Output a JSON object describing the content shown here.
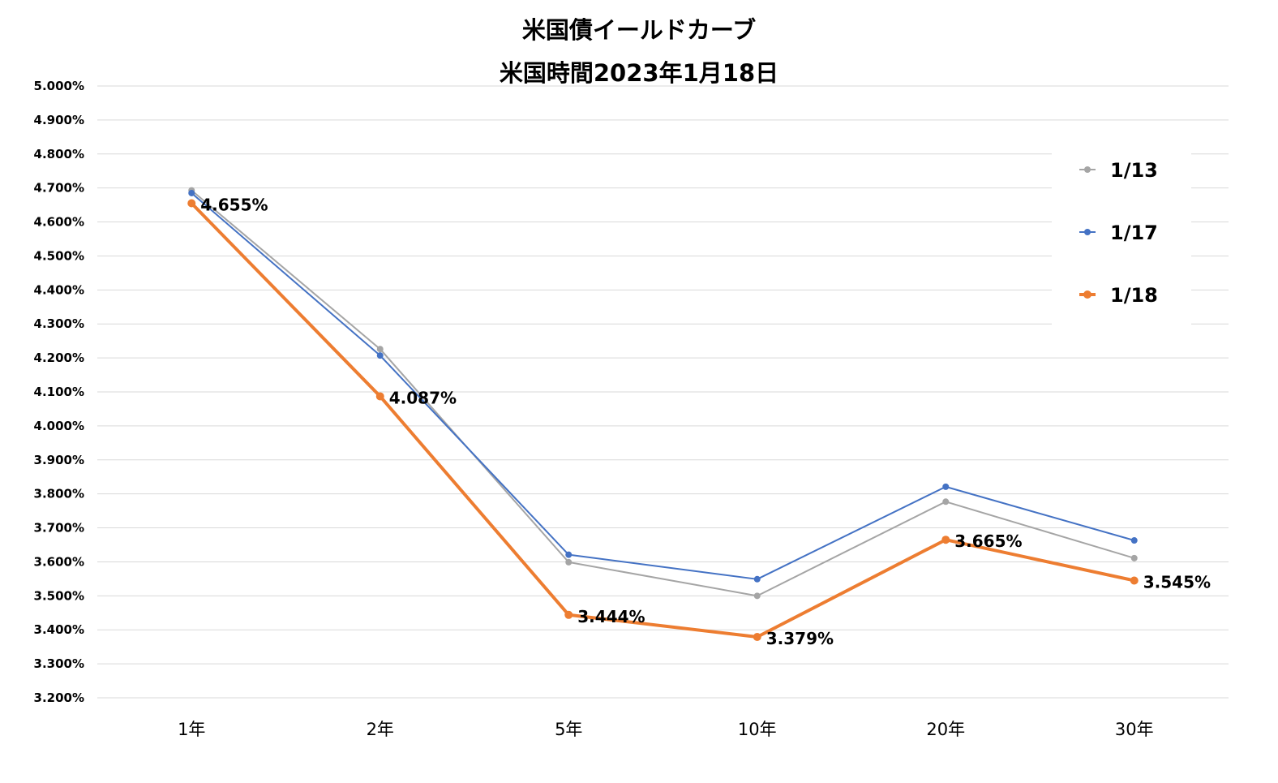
{
  "chart_data": {
    "type": "line",
    "title": "米国債イールドカーブ",
    "subtitle": "米国時間2023年1月18日",
    "categories": [
      "1年",
      "2年",
      "5年",
      "10年",
      "20年",
      "30年"
    ],
    "ylim": [
      3.2,
      5.0
    ],
    "ytick_step": 0.1,
    "ytick_format": "percent_3dp",
    "grid": true,
    "legend_placement": "top-right",
    "series": [
      {
        "name": "1/13",
        "color": "#A5A5A5",
        "values": [
          4.693,
          4.226,
          3.599,
          3.5,
          3.777,
          3.611
        ],
        "show_labels": false,
        "emphasis": false
      },
      {
        "name": "1/17",
        "color": "#4472C4",
        "values": [
          4.685,
          4.207,
          3.621,
          3.549,
          3.821,
          3.663
        ],
        "show_labels": false,
        "emphasis": false
      },
      {
        "name": "1/18",
        "color": "#ED7D31",
        "values": [
          4.655,
          4.087,
          3.444,
          3.379,
          3.665,
          3.545
        ],
        "labels": [
          "4.655%",
          "4.087%",
          "3.444%",
          "3.379%",
          "3.665%",
          "3.545%"
        ],
        "show_labels": true,
        "emphasis": true
      }
    ]
  }
}
